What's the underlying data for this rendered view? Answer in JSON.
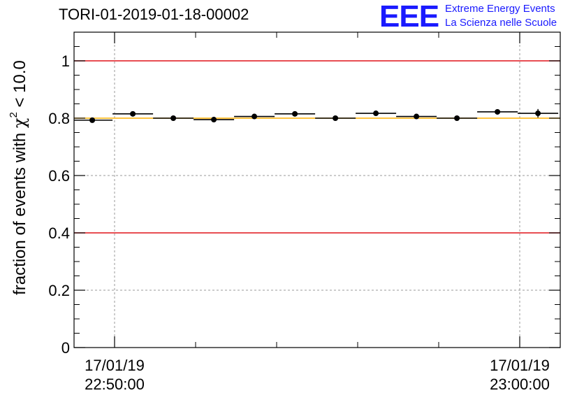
{
  "header": {
    "run_id": "TORI-01-2019-01-18-00002",
    "logo_text": "EEE",
    "logo_line1": "Extreme Energy Events",
    "logo_line2": "La Scienza nelle Scuole"
  },
  "colors": {
    "threshold_red": "#e0141a",
    "reference_yellow": "#ffb000",
    "marker": "#000000",
    "grid": "#9a9a9a",
    "logo_blue": "#1a1aff"
  },
  "chart_data": {
    "type": "scatter",
    "title": "TORI-01-2019-01-18-00002",
    "xlabel": "",
    "ylabel_prefix": "fraction of events with ",
    "ylabel_symbol": "χ",
    "ylabel_exp": "2",
    "ylabel_suffix": " < 10.0",
    "x_unit": "minutes after 17/01/19 22:50:00",
    "xlim": [
      -1.0,
      11.0
    ],
    "ylim": [
      0,
      1.1
    ],
    "yticks": [
      0,
      0.2,
      0.4,
      0.6,
      0.8,
      1
    ],
    "ytick_labels": [
      "0",
      "0.2",
      "0.4",
      "0.6",
      "0.8",
      "1"
    ],
    "xticks_labeled": [
      {
        "x": 0,
        "date": "17/01/19",
        "time": "22:50:00"
      },
      {
        "x": 10,
        "date": "17/01/19",
        "time": "23:00:00"
      }
    ],
    "x_minor_ticks": [
      2,
      4,
      6,
      8
    ],
    "grid": true,
    "hlines": [
      {
        "y": 1.0,
        "color": "red"
      },
      {
        "y": 0.4,
        "color": "red"
      },
      {
        "y": 0.8,
        "color": "yellow"
      }
    ],
    "points": [
      {
        "x": -0.55,
        "y": 0.793,
        "xerr": 0.5,
        "yerr": 0.005
      },
      {
        "x": 0.45,
        "y": 0.815,
        "xerr": 0.5,
        "yerr": 0.005
      },
      {
        "x": 1.45,
        "y": 0.8,
        "xerr": 0.5,
        "yerr": 0.005
      },
      {
        "x": 2.45,
        "y": 0.795,
        "xerr": 0.5,
        "yerr": 0.005
      },
      {
        "x": 3.45,
        "y": 0.806,
        "xerr": 0.5,
        "yerr": 0.005
      },
      {
        "x": 4.45,
        "y": 0.815,
        "xerr": 0.5,
        "yerr": 0.005
      },
      {
        "x": 5.45,
        "y": 0.8,
        "xerr": 0.5,
        "yerr": 0.005
      },
      {
        "x": 6.45,
        "y": 0.817,
        "xerr": 0.5,
        "yerr": 0.005
      },
      {
        "x": 7.45,
        "y": 0.806,
        "xerr": 0.5,
        "yerr": 0.005
      },
      {
        "x": 8.45,
        "y": 0.8,
        "xerr": 0.5,
        "yerr": 0.005
      },
      {
        "x": 9.45,
        "y": 0.822,
        "xerr": 0.5,
        "yerr": 0.005
      },
      {
        "x": 10.45,
        "y": 0.817,
        "xerr": 0.5,
        "yerr": 0.015
      }
    ]
  }
}
